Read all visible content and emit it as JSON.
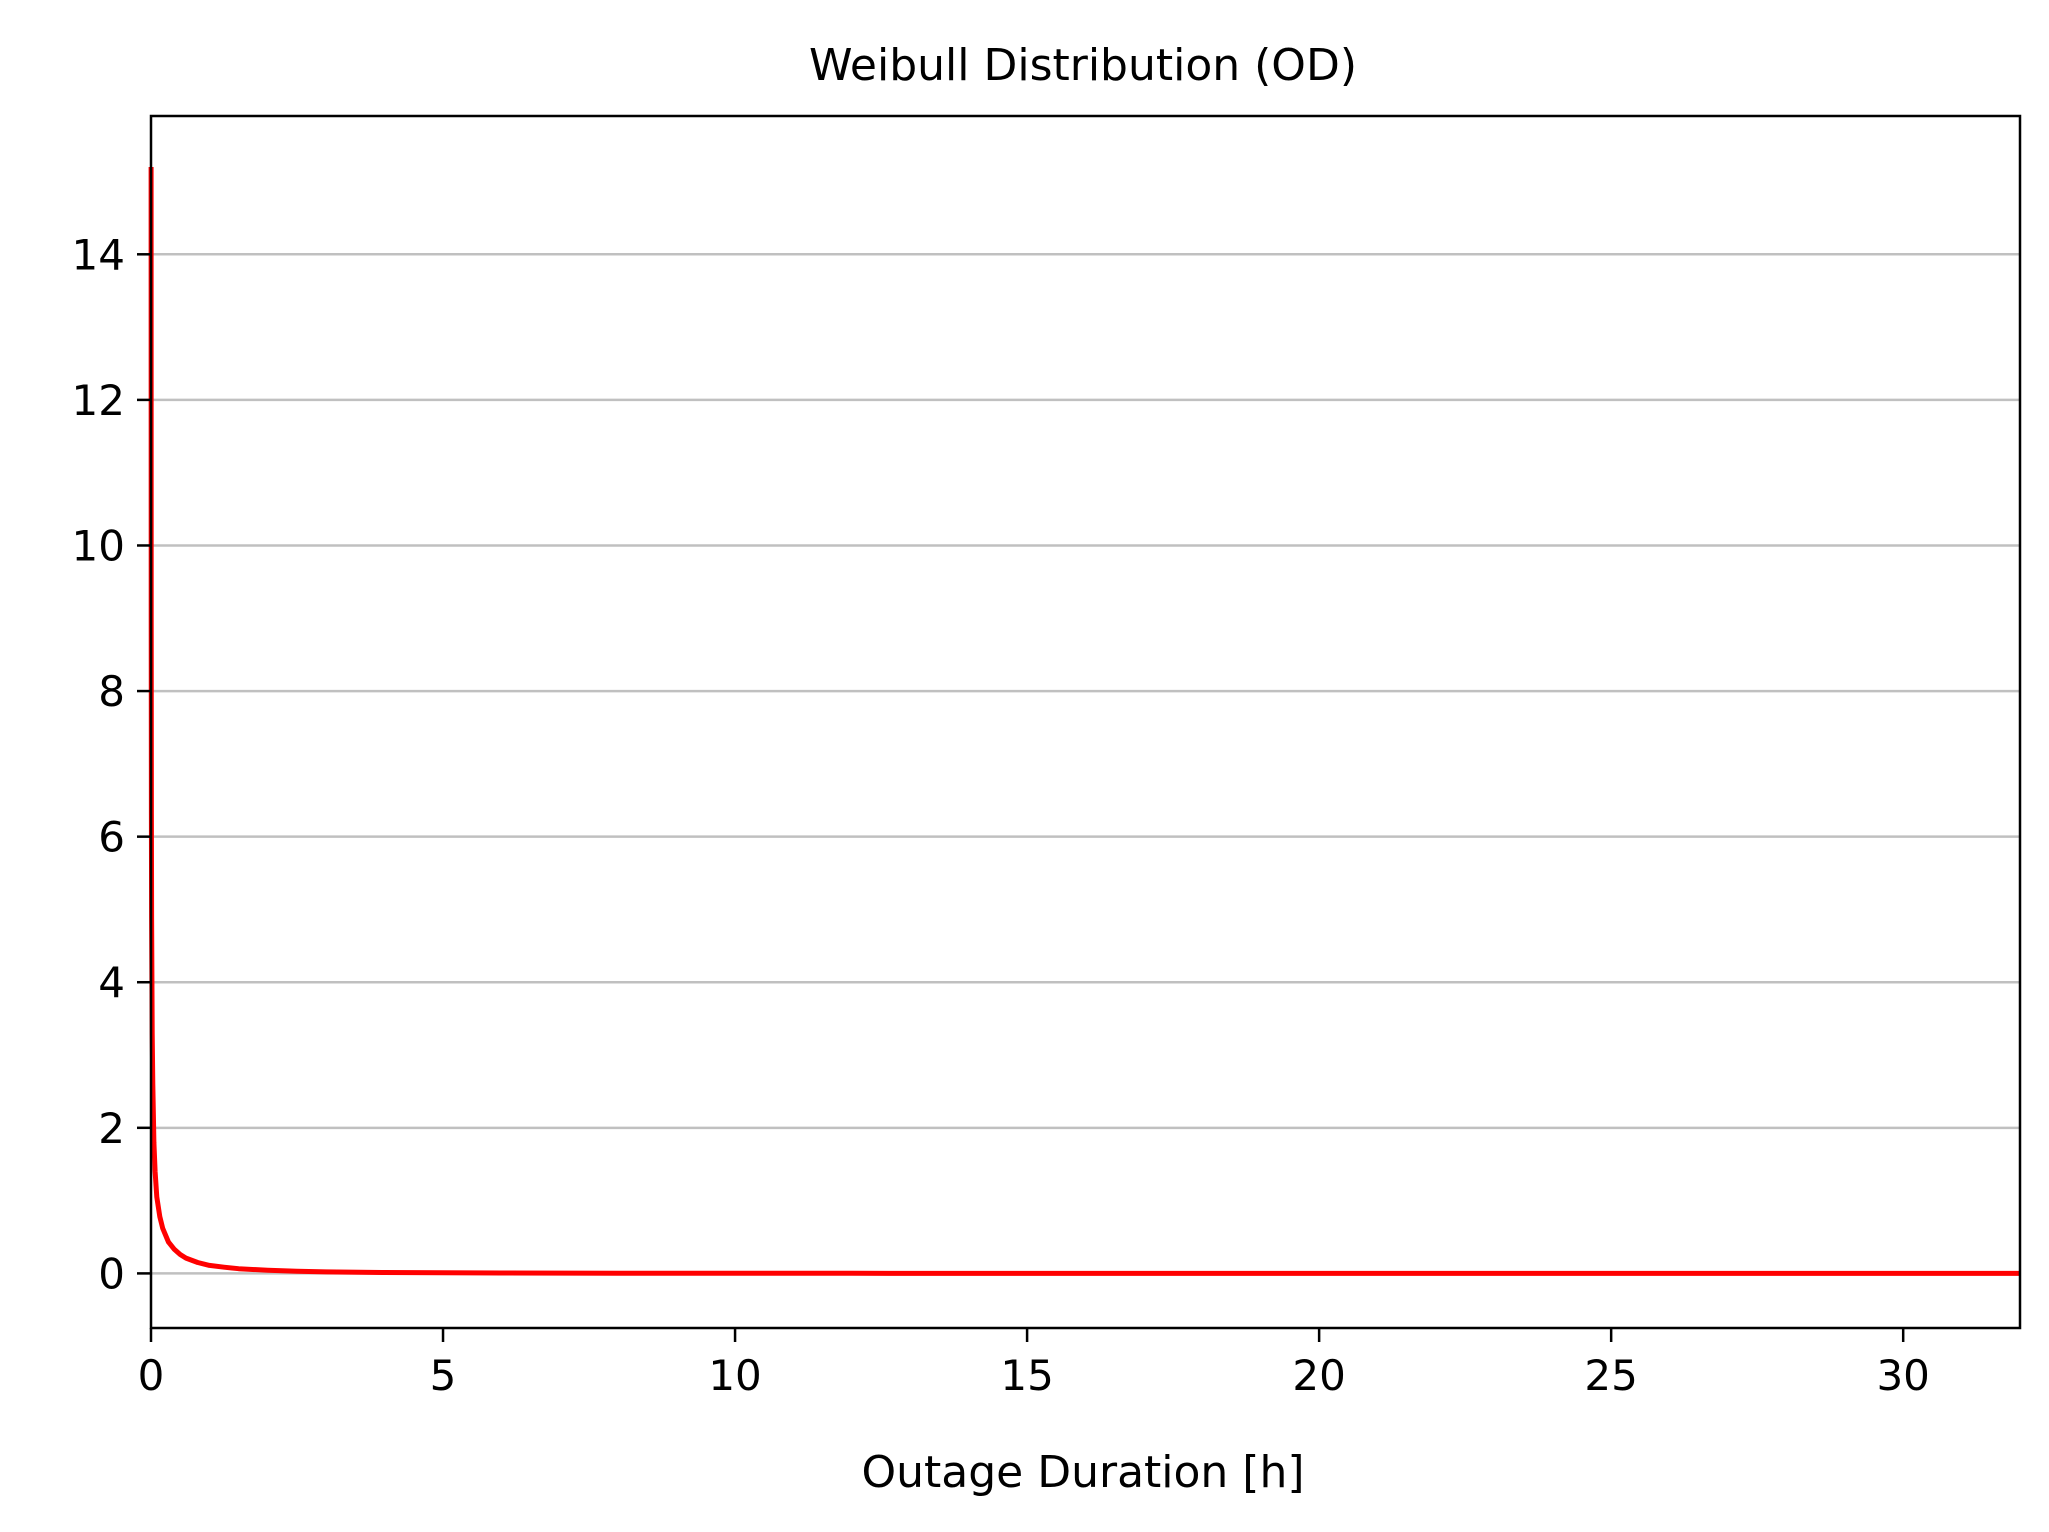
{
  "colors": {
    "series": "#ff0000",
    "grid": "#c0c0c0",
    "axis": "#000000",
    "background": "#ffffff"
  },
  "chart_data": {
    "type": "line",
    "title": "Weibull Distribution (OD)",
    "xlabel": "Outage Duration [h]",
    "ylabel": "",
    "xlim": [
      0,
      32
    ],
    "ylim": [
      -0.75,
      15.9
    ],
    "xticks": [
      0,
      5,
      10,
      15,
      20,
      25,
      30
    ],
    "yticks": [
      0,
      2,
      4,
      6,
      8,
      10,
      12,
      14
    ],
    "grid": {
      "x": false,
      "y": true
    },
    "legend": "none",
    "series": [
      {
        "x": [
          0.001,
          0.003,
          0.006,
          0.01,
          0.02,
          0.03,
          0.05,
          0.07,
          0.1,
          0.15,
          0.2,
          0.3,
          0.4,
          0.5,
          0.6,
          0.8,
          1.0,
          1.25,
          1.5,
          2.0,
          2.5,
          3.0,
          4.0,
          5.0,
          6.0,
          8.0,
          10.0,
          12.0,
          15.0,
          18.0,
          20.0,
          25.0,
          30.0,
          32.0
        ],
        "y": [
          15.2,
          9.0,
          6.3,
          4.9,
          3.3,
          2.6,
          1.8,
          1.4,
          1.05,
          0.78,
          0.62,
          0.43,
          0.33,
          0.26,
          0.21,
          0.15,
          0.11,
          0.085,
          0.065,
          0.042,
          0.029,
          0.021,
          0.012,
          0.008,
          0.0055,
          0.003,
          0.0018,
          0.0012,
          0.0007,
          0.0004,
          0.0003,
          0.00015,
          8e-05,
          6e-05
        ]
      }
    ]
  }
}
